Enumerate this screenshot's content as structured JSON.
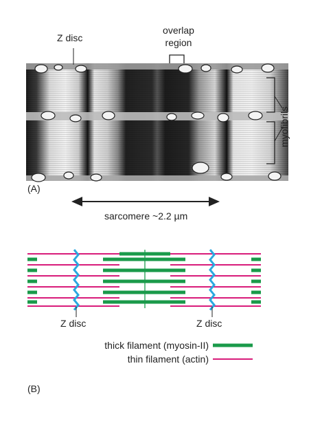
{
  "panel_a": {
    "label": "(A)",
    "z_disc_label": "Z disc",
    "overlap_label_line1": "overlap",
    "overlap_label_line2": "region",
    "myofibrils_label": "myofibrils",
    "sarcomere_label": "sarcomere ~2.2 µm"
  },
  "panel_b": {
    "label": "(B)",
    "z_disc_left": "Z disc",
    "z_disc_right": "Z disc",
    "legend": {
      "thick": "thick filament (myosin-II)",
      "thin": "thin filament (actin)"
    }
  },
  "colors": {
    "thick_filament": "#1a9a4a",
    "thin_filament": "#d81b7a",
    "z_disc": "#2aa8e0",
    "m_line": "#1a9a4a"
  }
}
